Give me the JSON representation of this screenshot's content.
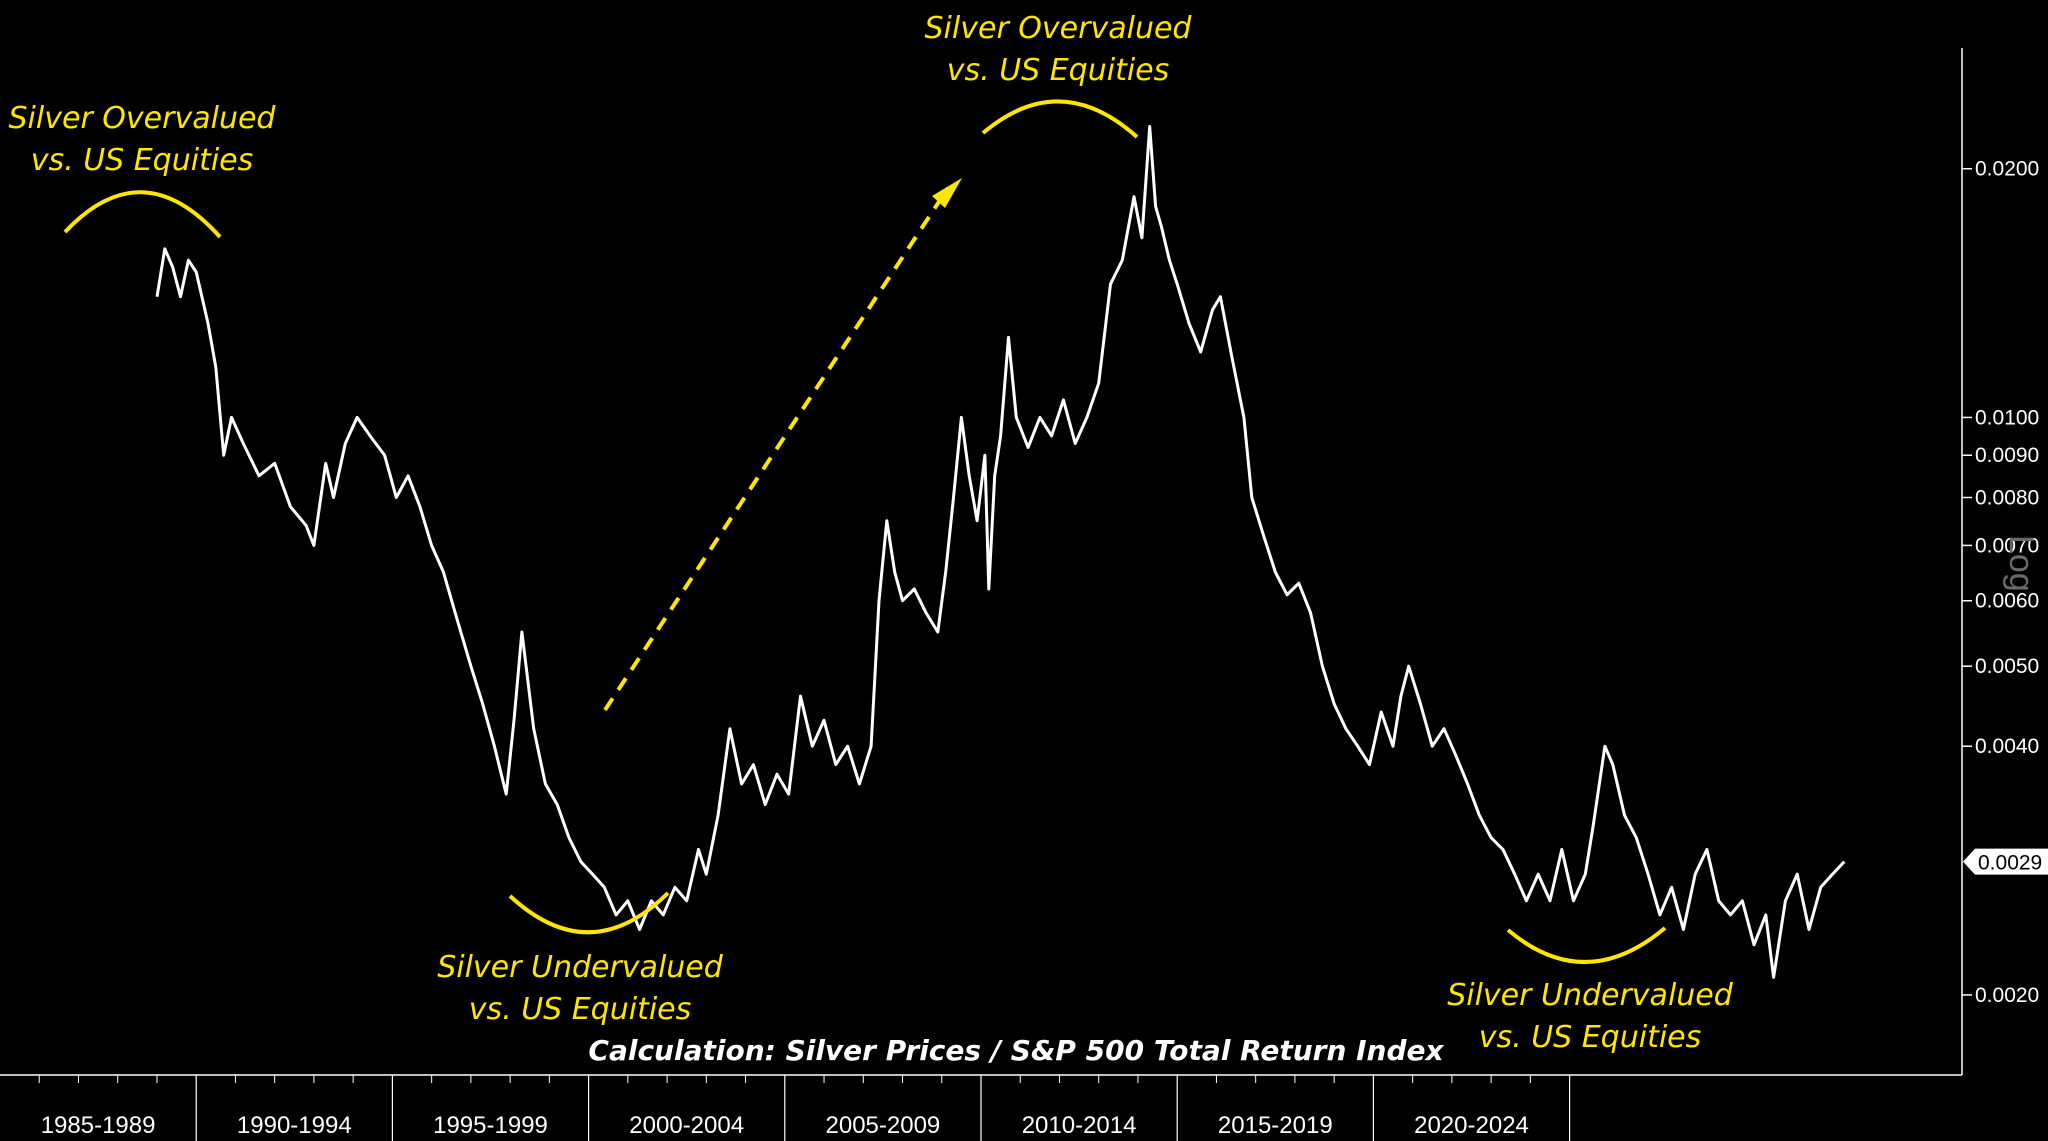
{
  "chart_data": {
    "type": "line",
    "title": "",
    "series": [
      {
        "values": [
          {
            "x": 1989.0,
            "y": 0.014
          },
          {
            "x": 1989.2,
            "y": 0.016
          },
          {
            "x": 1989.4,
            "y": 0.0152
          },
          {
            "x": 1989.6,
            "y": 0.014
          },
          {
            "x": 1989.8,
            "y": 0.0155
          },
          {
            "x": 1990.0,
            "y": 0.015
          },
          {
            "x": 1990.3,
            "y": 0.013
          },
          {
            "x": 1990.5,
            "y": 0.0115
          },
          {
            "x": 1990.7,
            "y": 0.009
          },
          {
            "x": 1990.9,
            "y": 0.01
          },
          {
            "x": 1991.2,
            "y": 0.0093
          },
          {
            "x": 1991.6,
            "y": 0.0085
          },
          {
            "x": 1992.0,
            "y": 0.0088
          },
          {
            "x": 1992.4,
            "y": 0.0078
          },
          {
            "x": 1992.8,
            "y": 0.0074
          },
          {
            "x": 1993.0,
            "y": 0.007
          },
          {
            "x": 1993.3,
            "y": 0.0088
          },
          {
            "x": 1993.5,
            "y": 0.008
          },
          {
            "x": 1993.8,
            "y": 0.0093
          },
          {
            "x": 1994.1,
            "y": 0.01
          },
          {
            "x": 1994.5,
            "y": 0.0094
          },
          {
            "x": 1994.8,
            "y": 0.009
          },
          {
            "x": 1995.1,
            "y": 0.008
          },
          {
            "x": 1995.4,
            "y": 0.0085
          },
          {
            "x": 1995.7,
            "y": 0.0078
          },
          {
            "x": 1996.0,
            "y": 0.007
          },
          {
            "x": 1996.3,
            "y": 0.0065
          },
          {
            "x": 1996.6,
            "y": 0.0058
          },
          {
            "x": 1997.0,
            "y": 0.005
          },
          {
            "x": 1997.3,
            "y": 0.0045
          },
          {
            "x": 1997.6,
            "y": 0.004
          },
          {
            "x": 1997.9,
            "y": 0.0035
          },
          {
            "x": 1998.1,
            "y": 0.0043
          },
          {
            "x": 1998.3,
            "y": 0.0055
          },
          {
            "x": 1998.6,
            "y": 0.0042
          },
          {
            "x": 1998.9,
            "y": 0.0036
          },
          {
            "x": 1999.2,
            "y": 0.0034
          },
          {
            "x": 1999.5,
            "y": 0.0031
          },
          {
            "x": 1999.8,
            "y": 0.0029
          },
          {
            "x": 2000.1,
            "y": 0.0028
          },
          {
            "x": 2000.4,
            "y": 0.0027
          },
          {
            "x": 2000.7,
            "y": 0.0025
          },
          {
            "x": 2001.0,
            "y": 0.0026
          },
          {
            "x": 2001.3,
            "y": 0.0024
          },
          {
            "x": 2001.6,
            "y": 0.0026
          },
          {
            "x": 2001.9,
            "y": 0.0025
          },
          {
            "x": 2002.2,
            "y": 0.0027
          },
          {
            "x": 2002.5,
            "y": 0.0026
          },
          {
            "x": 2002.8,
            "y": 0.003
          },
          {
            "x": 2003.0,
            "y": 0.0028
          },
          {
            "x": 2003.3,
            "y": 0.0033
          },
          {
            "x": 2003.6,
            "y": 0.0042
          },
          {
            "x": 2003.9,
            "y": 0.0036
          },
          {
            "x": 2004.2,
            "y": 0.0038
          },
          {
            "x": 2004.5,
            "y": 0.0034
          },
          {
            "x": 2004.8,
            "y": 0.0037
          },
          {
            "x": 2005.1,
            "y": 0.0035
          },
          {
            "x": 2005.4,
            "y": 0.0046
          },
          {
            "x": 2005.7,
            "y": 0.004
          },
          {
            "x": 2006.0,
            "y": 0.0043
          },
          {
            "x": 2006.3,
            "y": 0.0038
          },
          {
            "x": 2006.6,
            "y": 0.004
          },
          {
            "x": 2006.9,
            "y": 0.0036
          },
          {
            "x": 2007.2,
            "y": 0.004
          },
          {
            "x": 2007.4,
            "y": 0.006
          },
          {
            "x": 2007.6,
            "y": 0.0075
          },
          {
            "x": 2007.8,
            "y": 0.0065
          },
          {
            "x": 2008.0,
            "y": 0.006
          },
          {
            "x": 2008.3,
            "y": 0.0062
          },
          {
            "x": 2008.6,
            "y": 0.0058
          },
          {
            "x": 2008.9,
            "y": 0.0055
          },
          {
            "x": 2009.1,
            "y": 0.0065
          },
          {
            "x": 2009.3,
            "y": 0.008
          },
          {
            "x": 2009.5,
            "y": 0.01
          },
          {
            "x": 2009.7,
            "y": 0.0085
          },
          {
            "x": 2009.9,
            "y": 0.0075
          },
          {
            "x": 2010.1,
            "y": 0.009
          },
          {
            "x": 2010.2,
            "y": 0.0062
          },
          {
            "x": 2010.35,
            "y": 0.0085
          },
          {
            "x": 2010.5,
            "y": 0.0095
          },
          {
            "x": 2010.7,
            "y": 0.0125
          },
          {
            "x": 2010.9,
            "y": 0.01
          },
          {
            "x": 2011.2,
            "y": 0.0092
          },
          {
            "x": 2011.5,
            "y": 0.01
          },
          {
            "x": 2011.8,
            "y": 0.0095
          },
          {
            "x": 2012.1,
            "y": 0.0105
          },
          {
            "x": 2012.4,
            "y": 0.0093
          },
          {
            "x": 2012.7,
            "y": 0.01
          },
          {
            "x": 2013.0,
            "y": 0.011
          },
          {
            "x": 2013.3,
            "y": 0.0145
          },
          {
            "x": 2013.6,
            "y": 0.0155
          },
          {
            "x": 2013.9,
            "y": 0.0185
          },
          {
            "x": 2014.1,
            "y": 0.0165
          },
          {
            "x": 2014.3,
            "y": 0.0225
          },
          {
            "x": 2014.45,
            "y": 0.018
          },
          {
            "x": 2014.6,
            "y": 0.017
          },
          {
            "x": 2014.8,
            "y": 0.0155
          },
          {
            "x": 2015.0,
            "y": 0.0145
          },
          {
            "x": 2015.3,
            "y": 0.013
          },
          {
            "x": 2015.6,
            "y": 0.012
          },
          {
            "x": 2015.9,
            "y": 0.0135
          },
          {
            "x": 2016.1,
            "y": 0.014
          },
          {
            "x": 2016.4,
            "y": 0.0118
          },
          {
            "x": 2016.7,
            "y": 0.01
          },
          {
            "x": 2016.9,
            "y": 0.008
          },
          {
            "x": 2017.2,
            "y": 0.0072
          },
          {
            "x": 2017.5,
            "y": 0.0065
          },
          {
            "x": 2017.8,
            "y": 0.0061
          },
          {
            "x": 2018.1,
            "y": 0.0063
          },
          {
            "x": 2018.4,
            "y": 0.0058
          },
          {
            "x": 2018.7,
            "y": 0.005
          },
          {
            "x": 2019.0,
            "y": 0.0045
          },
          {
            "x": 2019.3,
            "y": 0.0042
          },
          {
            "x": 2019.6,
            "y": 0.004
          },
          {
            "x": 2019.9,
            "y": 0.0038
          },
          {
            "x": 2020.2,
            "y": 0.0044
          },
          {
            "x": 2020.5,
            "y": 0.004
          },
          {
            "x": 2020.7,
            "y": 0.0046
          },
          {
            "x": 2020.9,
            "y": 0.005
          },
          {
            "x": 2021.2,
            "y": 0.0045
          },
          {
            "x": 2021.5,
            "y": 0.004
          },
          {
            "x": 2021.8,
            "y": 0.0042
          },
          {
            "x": 2022.1,
            "y": 0.0039
          },
          {
            "x": 2022.4,
            "y": 0.0036
          },
          {
            "x": 2022.7,
            "y": 0.0033
          },
          {
            "x": 2023.0,
            "y": 0.0031
          },
          {
            "x": 2023.3,
            "y": 0.003
          },
          {
            "x": 2023.6,
            "y": 0.0028
          },
          {
            "x": 2023.9,
            "y": 0.0026
          },
          {
            "x": 2024.2,
            "y": 0.0028
          },
          {
            "x": 2024.5,
            "y": 0.0026
          },
          {
            "x": 2024.8,
            "y": 0.003
          },
          {
            "x": 2025.1,
            "y": 0.0026
          },
          {
            "x": 2025.4,
            "y": 0.0028
          },
          {
            "x": 2025.6,
            "y": 0.0032
          },
          {
            "x": 2025.9,
            "y": 0.004
          },
          {
            "x": 2026.1,
            "y": 0.0038
          },
          {
            "x": 2026.4,
            "y": 0.0033
          },
          {
            "x": 2026.7,
            "y": 0.0031
          },
          {
            "x": 2027.0,
            "y": 0.0028
          },
          {
            "x": 2027.3,
            "y": 0.0025
          },
          {
            "x": 2027.6,
            "y": 0.0027
          },
          {
            "x": 2027.9,
            "y": 0.0024
          },
          {
            "x": 2028.2,
            "y": 0.0028
          },
          {
            "x": 2028.5,
            "y": 0.003
          },
          {
            "x": 2028.8,
            "y": 0.0026
          },
          {
            "x": 2029.1,
            "y": 0.0025
          },
          {
            "x": 2029.4,
            "y": 0.0026
          },
          {
            "x": 2029.7,
            "y": 0.0023
          },
          {
            "x": 2030.0,
            "y": 0.0025
          },
          {
            "x": 2030.2,
            "y": 0.0021
          },
          {
            "x": 2030.5,
            "y": 0.0026
          },
          {
            "x": 2030.8,
            "y": 0.0028
          },
          {
            "x": 2031.1,
            "y": 0.0024
          },
          {
            "x": 2031.4,
            "y": 0.0027
          },
          {
            "x": 2031.7,
            "y": 0.0028
          },
          {
            "x": 2032.0,
            "y": 0.0029
          }
        ]
      }
    ],
    "x_categories": [
      "1985-1989",
      "1990-1994",
      "1995-1999",
      "2000-2004",
      "2005-2009",
      "2010-2014",
      "2015-2019",
      "2020-2024"
    ],
    "y_scale": "log",
    "ylim": [
      0.0016,
      0.028
    ],
    "y_ticks": [
      "0.0200",
      "0.0100",
      "0.0090",
      "0.0080",
      "0.0070",
      "0.0060",
      "0.0050",
      "0.0040",
      "0.0020"
    ],
    "y_tick_values": [
      0.02,
      0.01,
      0.009,
      0.008,
      0.007,
      0.006,
      0.005,
      0.004,
      0.002
    ],
    "y_axis_side": "right",
    "last_value_label": "0.0029",
    "last_value": 0.0029,
    "y_axis_label": "Log",
    "grid": false,
    "legend": "none",
    "annotations": [
      {
        "lines": [
          "Silver Overvalued",
          "vs. US Equities"
        ],
        "note": "left peak"
      },
      {
        "lines": [
          "Silver Overvalued",
          "vs. US Equities"
        ],
        "note": "top peak"
      },
      {
        "lines": [
          "Silver Undervalued",
          "vs. US Equities"
        ],
        "note": "left trough"
      },
      {
        "lines": [
          "Silver Undervalued",
          "vs. US Equities"
        ],
        "note": "right trough"
      }
    ],
    "calculation_note": "Calculation: Silver Prices / S&P 500 Total Return Index",
    "colors": {
      "line": "#ffffff",
      "annotation": "#ffe600",
      "background": "#000000",
      "axis": "#ffffff"
    }
  }
}
